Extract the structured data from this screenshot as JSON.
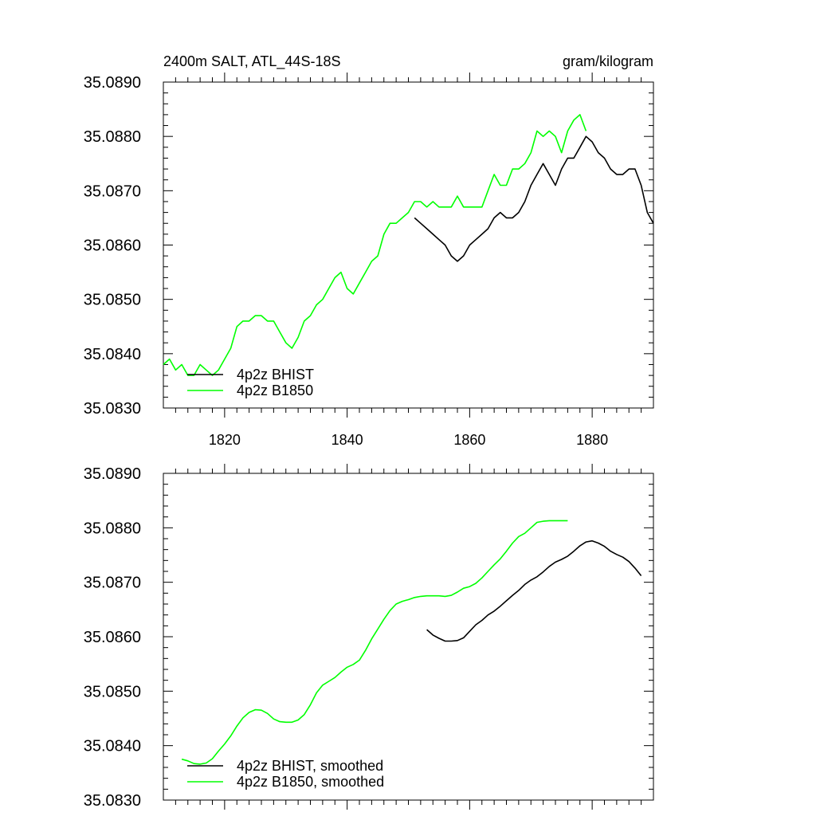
{
  "chart_data": [
    {
      "type": "line",
      "title": "2400m SALT, ATL_44S-18S",
      "units": "gram/kilogram",
      "xlabel": "",
      "ylabel": "",
      "xlim": [
        1810,
        1890
      ],
      "ylim": [
        35.083,
        35.089
      ],
      "x_ticks": [
        1820,
        1840,
        1860,
        1880
      ],
      "y_ticks": [
        "35.0830",
        "35.0840",
        "35.0850",
        "35.0860",
        "35.0870",
        "35.0880",
        "35.0890"
      ],
      "legend": "bottom-left",
      "series": [
        {
          "name": "4p2z BHIST",
          "color": "#000000",
          "x": [
            1851,
            1852,
            1853,
            1854,
            1855,
            1856,
            1857,
            1858,
            1859,
            1860,
            1861,
            1862,
            1863,
            1864,
            1865,
            1866,
            1867,
            1868,
            1869,
            1870,
            1871,
            1872,
            1873,
            1874,
            1875,
            1876,
            1877,
            1878,
            1879,
            1880,
            1881,
            1882,
            1883,
            1884,
            1885,
            1886,
            1887,
            1888,
            1889,
            1890
          ],
          "y": [
            35.0865,
            35.0864,
            35.0863,
            35.0862,
            35.0861,
            35.086,
            35.0858,
            35.0857,
            35.0858,
            35.086,
            35.0861,
            35.0862,
            35.0863,
            35.0865,
            35.0866,
            35.0865,
            35.0865,
            35.0866,
            35.0868,
            35.0871,
            35.0873,
            35.0875,
            35.0873,
            35.0871,
            35.0874,
            35.0876,
            35.0876,
            35.0878,
            35.088,
            35.0879,
            35.0877,
            35.0876,
            35.0874,
            35.0873,
            35.0873,
            35.0874,
            35.0874,
            35.0871,
            35.0866,
            35.0864
          ]
        },
        {
          "name": "4p2z B1850",
          "color": "#00ff00",
          "x": [
            1810,
            1811,
            1812,
            1813,
            1814,
            1815,
            1816,
            1817,
            1818,
            1819,
            1820,
            1821,
            1822,
            1823,
            1824,
            1825,
            1826,
            1827,
            1828,
            1829,
            1830,
            1831,
            1832,
            1833,
            1834,
            1835,
            1836,
            1837,
            1838,
            1839,
            1840,
            1841,
            1842,
            1843,
            1844,
            1845,
            1846,
            1847,
            1848,
            1849,
            1850,
            1851,
            1852,
            1853,
            1854,
            1855,
            1856,
            1857,
            1858,
            1859,
            1860,
            1861,
            1862,
            1863,
            1864,
            1865,
            1866,
            1867,
            1868,
            1869,
            1870,
            1871,
            1872,
            1873,
            1874,
            1875,
            1876,
            1877,
            1878,
            1879
          ],
          "y": [
            35.0838,
            35.0839,
            35.0837,
            35.0838,
            35.0836,
            35.0836,
            35.0838,
            35.0837,
            35.0836,
            35.0837,
            35.0839,
            35.0841,
            35.0845,
            35.0846,
            35.0846,
            35.0847,
            35.0847,
            35.0846,
            35.0846,
            35.0844,
            35.0842,
            35.0841,
            35.0843,
            35.0846,
            35.0847,
            35.0849,
            35.085,
            35.0852,
            35.0854,
            35.0855,
            35.0852,
            35.0851,
            35.0853,
            35.0855,
            35.0857,
            35.0858,
            35.0862,
            35.0864,
            35.0864,
            35.0865,
            35.0866,
            35.0868,
            35.0868,
            35.0867,
            35.0868,
            35.0867,
            35.0867,
            35.0867,
            35.0869,
            35.0867,
            35.0867,
            35.0867,
            35.0867,
            35.087,
            35.0873,
            35.0871,
            35.0871,
            35.0874,
            35.0874,
            35.0875,
            35.0877,
            35.0881,
            35.088,
            35.0881,
            35.088,
            35.0877,
            35.0881,
            35.0883,
            35.0884,
            35.0881
          ]
        }
      ]
    },
    {
      "type": "line",
      "title": "",
      "xlabel": "",
      "ylabel": "",
      "xlim": [
        1810,
        1890
      ],
      "ylim": [
        35.083,
        35.089
      ],
      "x_ticks": [
        1820,
        1840,
        1860,
        1880
      ],
      "y_ticks": [
        "35.0830",
        "35.0840",
        "35.0850",
        "35.0860",
        "35.0870",
        "35.0880",
        "35.0890"
      ],
      "legend": "bottom-left",
      "series": [
        {
          "name": "4p2z BHIST, smoothed",
          "color": "#000000",
          "x": [
            1853,
            1854,
            1855,
            1856,
            1857,
            1858,
            1859,
            1860,
            1861,
            1862,
            1863,
            1864,
            1865,
            1866,
            1867,
            1868,
            1869,
            1870,
            1871,
            1872,
            1873,
            1874,
            1875,
            1876,
            1877,
            1878,
            1879,
            1880,
            1881,
            1882,
            1883,
            1884,
            1885,
            1886,
            1887,
            1888
          ],
          "y": [
            35.08613,
            35.08603,
            35.08597,
            35.08592,
            35.08592,
            35.08593,
            35.08598,
            35.0861,
            35.08622,
            35.0863,
            35.0864,
            35.08647,
            35.08656,
            35.08666,
            35.08676,
            35.08685,
            35.08696,
            35.08704,
            35.0871,
            35.08719,
            35.08729,
            35.08737,
            35.08742,
            35.08748,
            35.08757,
            35.08767,
            35.08774,
            35.08776,
            35.08772,
            35.08766,
            35.08757,
            35.08751,
            35.08746,
            35.08738,
            35.08726,
            35.08712
          ]
        },
        {
          "name": "4p2z B1850, smoothed",
          "color": "#00ff00",
          "x": [
            1813,
            1814,
            1815,
            1816,
            1817,
            1818,
            1819,
            1820,
            1821,
            1822,
            1823,
            1824,
            1825,
            1826,
            1827,
            1828,
            1829,
            1830,
            1831,
            1832,
            1833,
            1834,
            1835,
            1836,
            1837,
            1838,
            1839,
            1840,
            1841,
            1842,
            1843,
            1844,
            1845,
            1846,
            1847,
            1848,
            1849,
            1850,
            1851,
            1852,
            1853,
            1854,
            1855,
            1856,
            1857,
            1858,
            1859,
            1860,
            1861,
            1862,
            1863,
            1864,
            1865,
            1866,
            1867,
            1868,
            1869,
            1870,
            1871,
            1872,
            1873,
            1874,
            1875,
            1876
          ],
          "y": [
            35.08375,
            35.08372,
            35.08367,
            35.08366,
            35.08368,
            35.08376,
            35.0839,
            35.08403,
            35.08418,
            35.08436,
            35.08451,
            35.08461,
            35.08466,
            35.08465,
            35.08459,
            35.08449,
            35.08444,
            35.08443,
            35.08443,
            35.08447,
            35.08457,
            35.08475,
            35.08497,
            35.08511,
            35.08518,
            35.08525,
            35.08535,
            35.08544,
            35.08549,
            35.08557,
            35.08575,
            35.08596,
            35.08614,
            35.08632,
            35.08648,
            35.0866,
            35.08665,
            35.08668,
            35.08672,
            35.08674,
            35.08675,
            35.08675,
            35.08675,
            35.08674,
            35.08676,
            35.08682,
            35.08689,
            35.08692,
            35.08698,
            35.08708,
            35.0872,
            35.08732,
            35.08743,
            35.08757,
            35.08772,
            35.08784,
            35.0879,
            35.088,
            35.0881,
            35.08812,
            35.08813,
            35.08813,
            35.08813,
            35.08813
          ]
        }
      ]
    }
  ]
}
